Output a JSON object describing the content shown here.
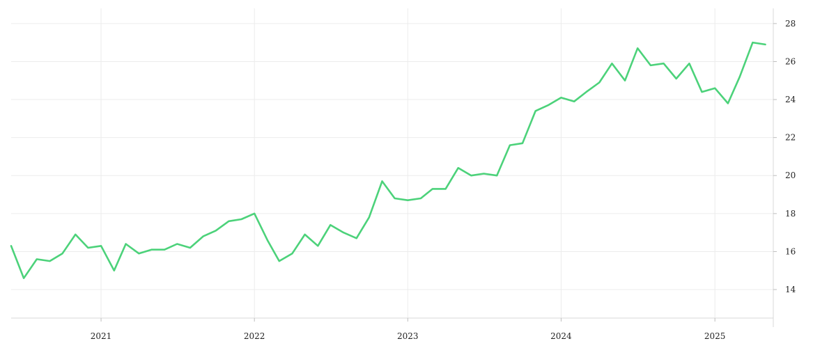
{
  "chart_data": {
    "type": "line",
    "title": "",
    "xlabel": "",
    "ylabel": "",
    "grid": true,
    "legend": "none",
    "ylim": [
      12.5,
      28.8
    ],
    "xlim": [
      "2020-06-01",
      "2025-05-20"
    ],
    "x_ticks": [
      "2021",
      "2022",
      "2023",
      "2024",
      "2025"
    ],
    "y_ticks": [
      14,
      16,
      18,
      20,
      22,
      24,
      26,
      28
    ],
    "series": [
      {
        "color": "#4cd27a",
        "x": [
          "2020-06-01",
          "2020-07-01",
          "2020-08-01",
          "2020-09-01",
          "2020-10-01",
          "2020-11-01",
          "2020-12-01",
          "2021-01-01",
          "2021-02-01",
          "2021-03-01",
          "2021-04-01",
          "2021-05-01",
          "2021-06-01",
          "2021-07-01",
          "2021-08-01",
          "2021-09-01",
          "2021-10-01",
          "2021-11-01",
          "2021-12-01",
          "2022-01-01",
          "2022-02-01",
          "2022-03-01",
          "2022-04-01",
          "2022-05-01",
          "2022-06-01",
          "2022-07-01",
          "2022-08-01",
          "2022-09-01",
          "2022-10-01",
          "2022-11-01",
          "2022-12-01",
          "2023-01-01",
          "2023-02-01",
          "2023-03-01",
          "2023-04-01",
          "2023-05-01",
          "2023-06-01",
          "2023-07-01",
          "2023-08-01",
          "2023-09-01",
          "2023-10-01",
          "2023-11-01",
          "2023-12-01",
          "2024-01-01",
          "2024-02-01",
          "2024-03-01",
          "2024-04-01",
          "2024-05-01",
          "2024-06-01",
          "2024-07-01",
          "2024-08-01",
          "2024-09-01",
          "2024-10-01",
          "2024-11-01",
          "2024-12-01",
          "2025-01-01",
          "2025-02-01",
          "2025-03-01",
          "2025-04-01",
          "2025-05-01"
        ],
        "values": [
          16.3,
          14.6,
          15.6,
          15.5,
          15.9,
          16.9,
          16.2,
          16.3,
          15.0,
          16.4,
          15.9,
          16.1,
          16.1,
          16.4,
          16.2,
          16.8,
          17.1,
          17.6,
          17.7,
          18.0,
          16.6,
          15.5,
          15.9,
          16.9,
          16.3,
          17.4,
          17.0,
          16.7,
          17.8,
          19.7,
          18.8,
          18.7,
          18.8,
          19.3,
          19.3,
          20.4,
          20.0,
          20.1,
          20.0,
          21.6,
          21.7,
          23.4,
          23.7,
          24.1,
          23.9,
          24.4,
          24.9,
          25.9,
          25.0,
          26.7,
          25.8,
          25.9,
          25.1,
          25.9,
          24.4,
          24.6,
          23.8,
          25.2,
          27.0,
          26.9
        ]
      }
    ]
  }
}
